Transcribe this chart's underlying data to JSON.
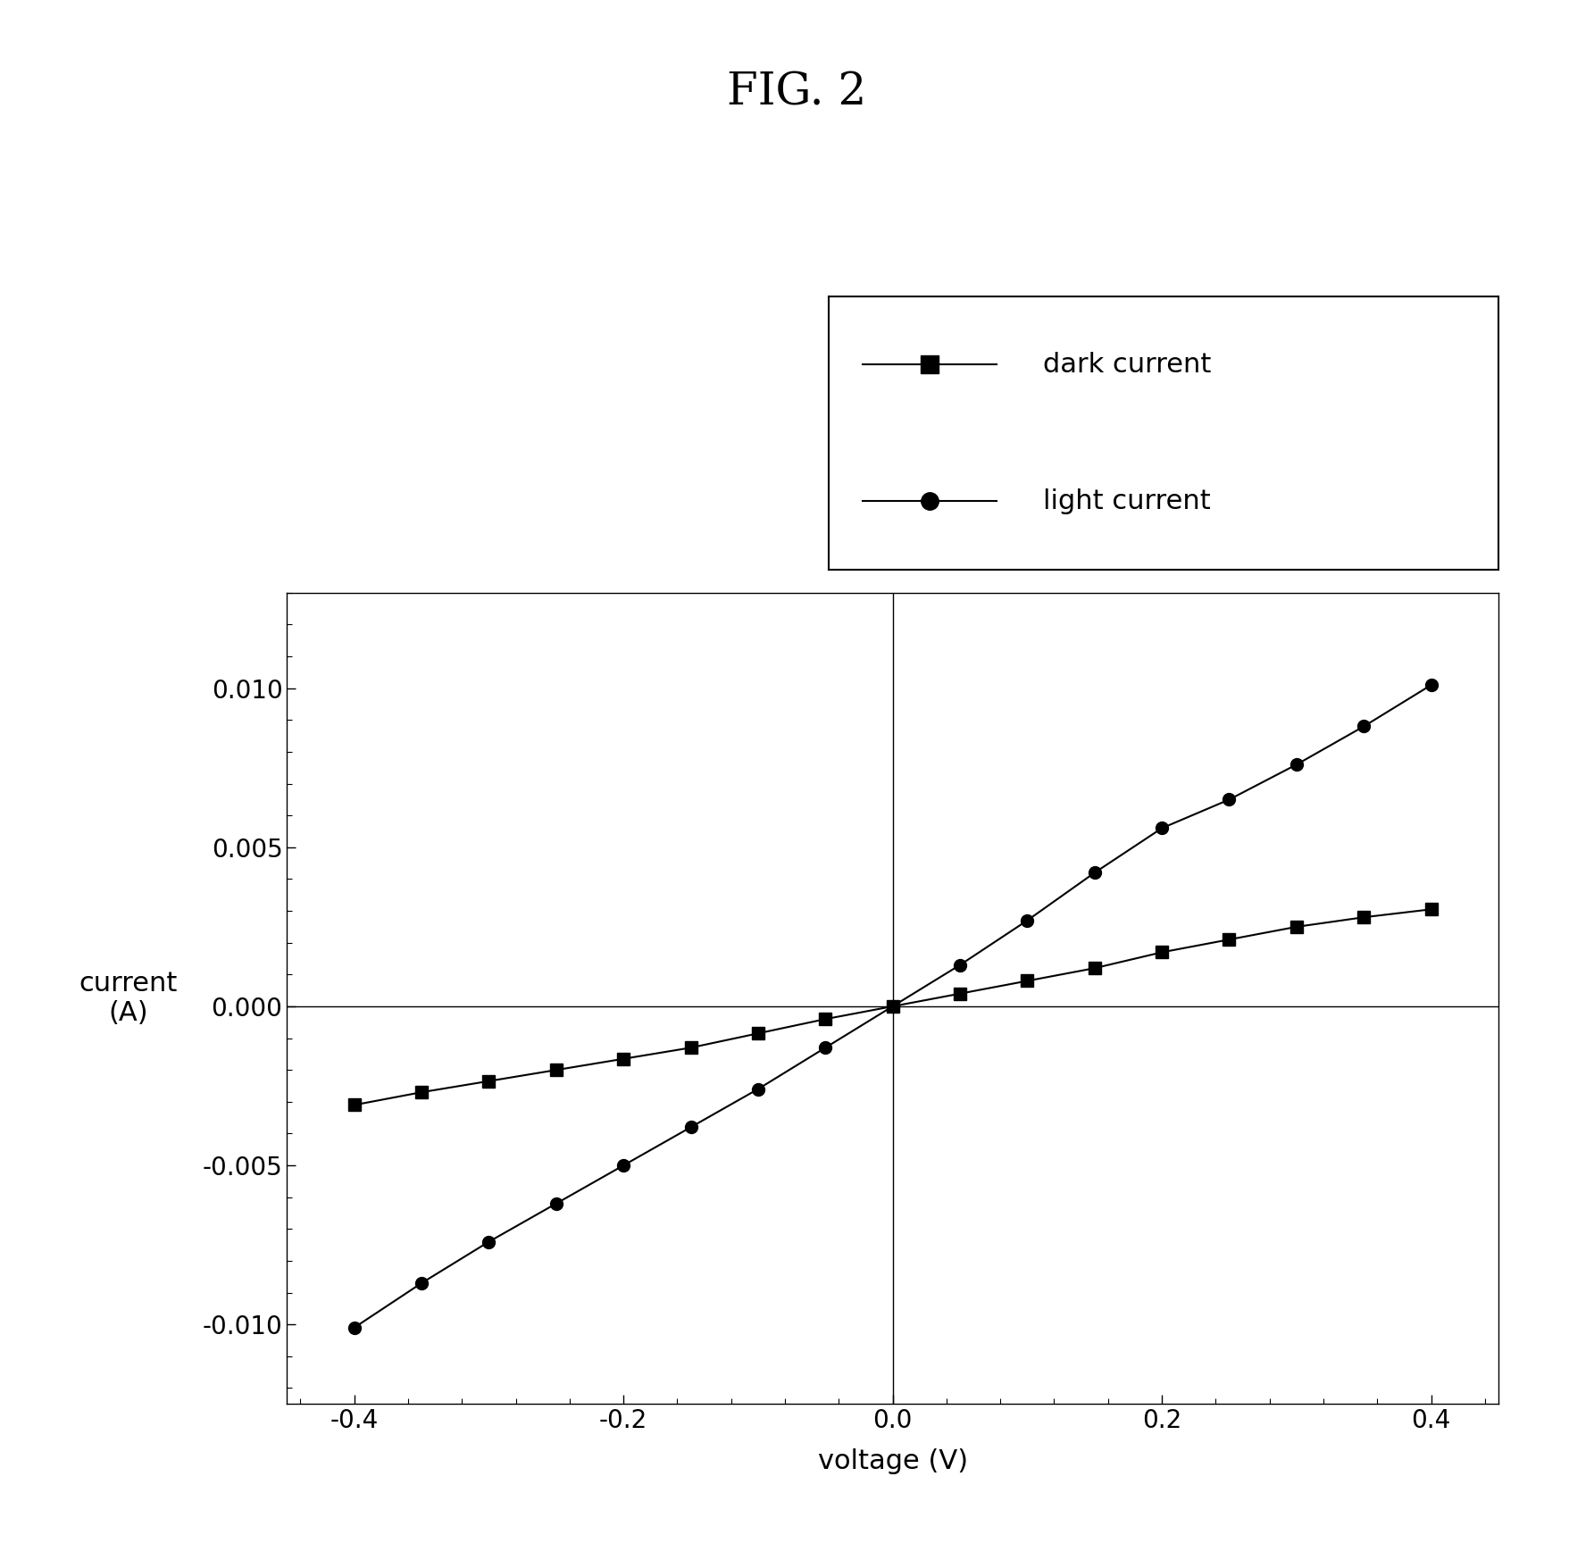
{
  "title": "FIG. 2",
  "xlabel": "voltage (V)",
  "ylabel": "current\n(A)",
  "xlim": [
    -0.45,
    0.45
  ],
  "ylim": [
    -0.0125,
    0.013
  ],
  "dark_current_x": [
    -0.4,
    -0.35,
    -0.3,
    -0.25,
    -0.2,
    -0.15,
    -0.1,
    -0.05,
    0.0,
    0.05,
    0.1,
    0.15,
    0.2,
    0.25,
    0.3,
    0.35,
    0.4
  ],
  "dark_current_y": [
    -0.0031,
    -0.0027,
    -0.00235,
    -0.002,
    -0.00165,
    -0.0013,
    -0.00085,
    -0.0004,
    0.0,
    0.0004,
    0.0008,
    0.0012,
    0.0017,
    0.0021,
    0.0025,
    0.0028,
    0.00305
  ],
  "light_current_x": [
    -0.4,
    -0.35,
    -0.3,
    -0.25,
    -0.2,
    -0.15,
    -0.1,
    -0.05,
    0.0,
    0.05,
    0.1,
    0.15,
    0.2,
    0.25,
    0.3,
    0.35,
    0.4
  ],
  "light_current_y": [
    -0.0101,
    -0.0087,
    -0.0074,
    -0.0062,
    -0.005,
    -0.0038,
    -0.0026,
    -0.0013,
    0.0,
    0.0013,
    0.0027,
    0.0042,
    0.0056,
    0.0065,
    0.0076,
    0.0088,
    0.0101
  ],
  "dark_color": "#000000",
  "light_color": "#000000",
  "background_color": "#ffffff",
  "legend_labels": [
    "dark current",
    "light current"
  ],
  "xticks": [
    -0.4,
    -0.2,
    0.0,
    0.2,
    0.4
  ],
  "yticks": [
    -0.01,
    -0.005,
    0.0,
    0.005,
    0.01
  ],
  "title_fontsize": 36,
  "label_fontsize": 22,
  "tick_fontsize": 20,
  "legend_fontsize": 22
}
